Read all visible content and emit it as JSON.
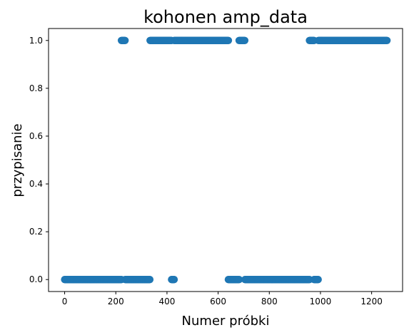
{
  "chart_data": {
    "type": "scatter",
    "title": "kohonen amp_data",
    "xlabel": "Numer próbki",
    "ylabel": "przypisanie",
    "xlim": [
      -63,
      1321
    ],
    "ylim": [
      -0.05,
      1.05
    ],
    "xticks": [
      0,
      200,
      400,
      600,
      800,
      1000,
      1200
    ],
    "xtick_labels": [
      "0",
      "200",
      "400",
      "600",
      "800",
      "1000",
      "1200"
    ],
    "yticks": [
      0.0,
      0.2,
      0.4,
      0.6,
      0.8,
      1.0
    ],
    "ytick_labels": [
      "0.0",
      "0.2",
      "0.4",
      "0.6",
      "0.8",
      "1.0"
    ],
    "grid": false,
    "marker_color": "#1f77b4",
    "segments": [
      {
        "x_start": 0,
        "x_end": 222,
        "y": 0
      },
      {
        "x_start": 222,
        "x_end": 237,
        "y": 1
      },
      {
        "x_start": 237,
        "x_end": 334,
        "y": 0
      },
      {
        "x_start": 334,
        "x_end": 418,
        "y": 1
      },
      {
        "x_start": 418,
        "x_end": 428,
        "y": 0
      },
      {
        "x_start": 428,
        "x_end": 640,
        "y": 1
      },
      {
        "x_start": 640,
        "x_end": 682,
        "y": 0
      },
      {
        "x_start": 682,
        "x_end": 705,
        "y": 1
      },
      {
        "x_start": 705,
        "x_end": 957,
        "y": 0
      },
      {
        "x_start": 957,
        "x_end": 975,
        "y": 1
      },
      {
        "x_start": 975,
        "x_end": 992,
        "y": 0
      },
      {
        "x_start": 992,
        "x_end": 1004,
        "y": 1
      },
      {
        "x_start": 1004,
        "x_end": 1260,
        "y": 1
      }
    ]
  }
}
